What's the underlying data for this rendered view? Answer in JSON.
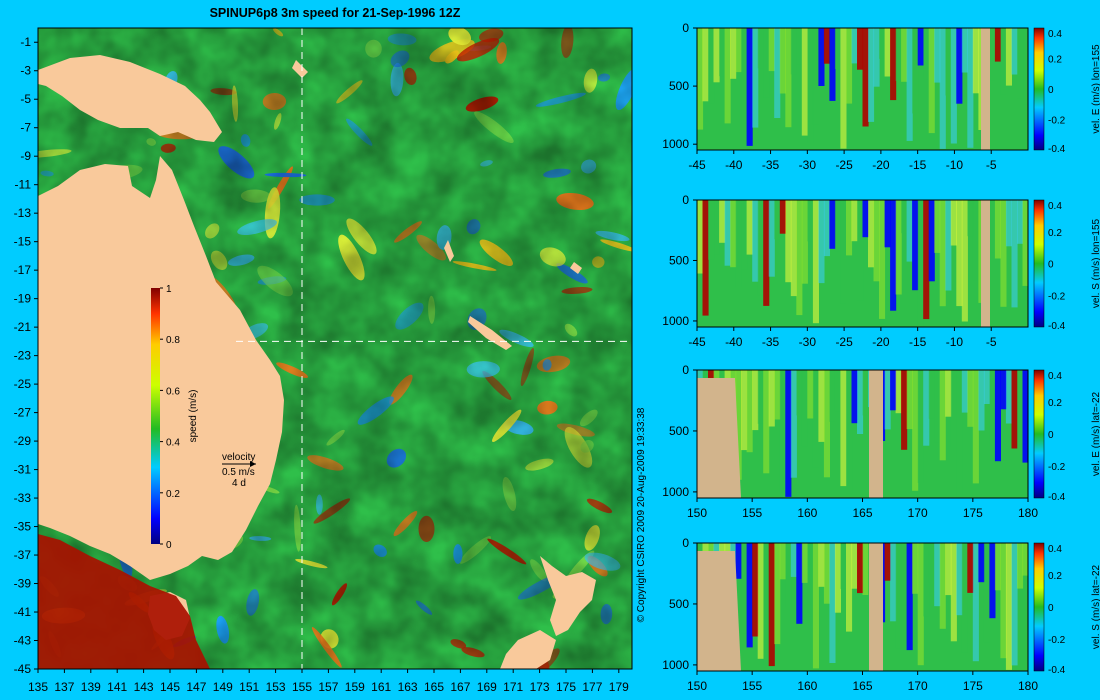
{
  "title": "SPINUP6p8 3m speed for 21-Sep-1996 12Z",
  "copyright": "© Copyright CSIRO 2009   20-Aug-2009 19:33:38",
  "colors": {
    "background": "#00ccff",
    "land": "#f9c99b",
    "section_land": "#d2b48c",
    "marker_line": "#ffffff"
  },
  "velocity_legend": {
    "label": "velocity",
    "speed": "0.5 m/s",
    "time": "4 d"
  },
  "chart_data": [
    {
      "type": "heatmap",
      "name": "map",
      "title": "SPINUP6p8 3m speed for 21-Sep-1996 12Z",
      "xlim": [
        135,
        180
      ],
      "ylim": [
        -45,
        0
      ],
      "xticks": [
        135,
        137,
        139,
        141,
        143,
        145,
        147,
        149,
        151,
        153,
        155,
        157,
        159,
        161,
        163,
        165,
        167,
        169,
        171,
        173,
        175,
        177,
        179
      ],
      "yticks": [
        -1,
        -3,
        -5,
        -7,
        -9,
        -11,
        -13,
        -15,
        -17,
        -19,
        -21,
        -23,
        -25,
        -27,
        -29,
        -31,
        -33,
        -35,
        -37,
        -39,
        -41,
        -43,
        -45
      ],
      "markers": {
        "lon": 155,
        "lat": -22
      },
      "colorbar": {
        "label": "speed (m/s)",
        "range": [
          0,
          1
        ],
        "ticks": [
          0,
          0.2,
          0.4,
          0.6,
          0.8,
          1
        ]
      }
    },
    {
      "type": "heatmap",
      "name": "section-1",
      "section_label": "vel. E (m/s) lon=155",
      "xlim": [
        -45,
        0
      ],
      "ylim": [
        1050,
        0
      ],
      "xticks": [
        -45,
        -40,
        -35,
        -30,
        -25,
        -20,
        -15,
        -10,
        -5
      ],
      "yticks": [
        0,
        500,
        1000
      ],
      "colorbar": {
        "range": [
          -0.4,
          0.4
        ],
        "ticks": [
          0.4,
          0.2,
          0,
          -0.2,
          -0.4
        ]
      }
    },
    {
      "type": "heatmap",
      "name": "section-2",
      "section_label": "vel. S (m/s) lon=155",
      "xlim": [
        -45,
        0
      ],
      "ylim": [
        1050,
        0
      ],
      "xticks": [
        -45,
        -40,
        -35,
        -30,
        -25,
        -20,
        -15,
        -10,
        -5
      ],
      "yticks": [
        0,
        500,
        1000
      ],
      "colorbar": {
        "range": [
          -0.4,
          0.4
        ],
        "ticks": [
          0.4,
          0.2,
          0,
          -0.2,
          -0.4
        ]
      }
    },
    {
      "type": "heatmap",
      "name": "section-3",
      "section_label": "vel. E (m/s) lat=-22",
      "xlim": [
        150,
        180
      ],
      "ylim": [
        1050,
        0
      ],
      "xticks": [
        150,
        155,
        160,
        165,
        170,
        175,
        180
      ],
      "yticks": [
        0,
        500,
        1000
      ],
      "colorbar": {
        "range": [
          -0.4,
          0.4
        ],
        "ticks": [
          0.4,
          0.2,
          0,
          -0.2,
          -0.4
        ]
      }
    },
    {
      "type": "heatmap",
      "name": "section-4",
      "section_label": "vel. S (m/s) lat=-22",
      "xlim": [
        150,
        180
      ],
      "ylim": [
        1050,
        0
      ],
      "xticks": [
        150,
        155,
        160,
        165,
        170,
        175,
        180
      ],
      "yticks": [
        0,
        500,
        1000
      ],
      "colorbar": {
        "range": [
          -0.4,
          0.4
        ],
        "ticks": [
          0.4,
          0.2,
          0,
          -0.2,
          -0.4
        ]
      }
    }
  ]
}
